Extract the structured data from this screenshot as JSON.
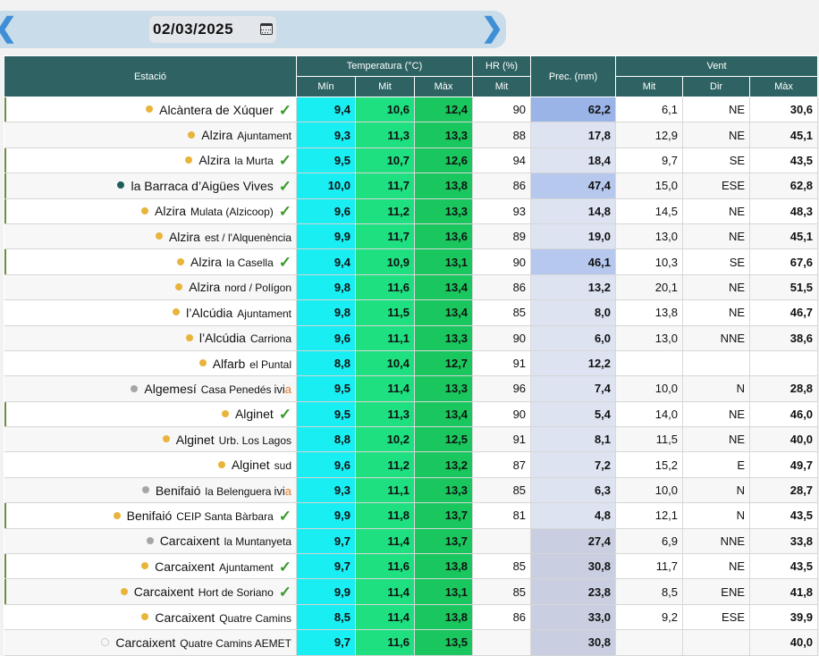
{
  "date_nav": {
    "prev_label": "<",
    "next_label": ">",
    "date": "02/03/2025",
    "calendar_icon": "calendar-icon"
  },
  "headers": {
    "estacio": "Estació",
    "temperatura": "Temperatura (°C)",
    "hr": "HR (%)",
    "prec": "Prec. (mm)",
    "vent": "Vent",
    "min": "Mín",
    "mit": "Mit",
    "max": "Màx",
    "hr_mit": "Mit",
    "vent_mit": "Mit",
    "vent_dir": "Dir",
    "vent_max": "Màx"
  },
  "colors": {
    "header_bg": "#2f6363",
    "temp_min_bg": "#19eef2",
    "temp_mit_bg": "#1ee081",
    "temp_max_bg": "#19c75e",
    "dot_yellow": "#e8b43a",
    "dot_gray": "#a6a6a6",
    "dot_teal": "#1e5e5a",
    "check_green": "#3b9a2c",
    "ivia_orange": "#e07a2b",
    "prec_strong": "#9ab4e8",
    "prec_medium": "#b6c8ee",
    "prec_light": "#dde3f1",
    "prec_gray": "#c9cfe0"
  },
  "rows": [
    {
      "name": "Alcàntera de Xúquer",
      "sub": "",
      "ivia": false,
      "check": true,
      "dot": "yellow",
      "ok": true,
      "min": "9,4",
      "mit": "10,6",
      "max": "12,4",
      "hr": "90",
      "prec": "62,2",
      "prec_level": "strong",
      "wmit": "6,1",
      "wdir": "NE",
      "wmax": "30,6"
    },
    {
      "name": "Alzira",
      "sub": "Ajuntament",
      "ivia": false,
      "check": false,
      "dot": "yellow",
      "ok": false,
      "min": "9,3",
      "mit": "11,3",
      "max": "13,3",
      "hr": "88",
      "prec": "17,8",
      "prec_level": "light",
      "wmit": "12,9",
      "wdir": "NE",
      "wmax": "45,1"
    },
    {
      "name": "Alzira",
      "sub": "la Murta",
      "ivia": false,
      "check": true,
      "dot": "yellow",
      "ok": true,
      "min": "9,5",
      "mit": "10,7",
      "max": "12,6",
      "hr": "94",
      "prec": "18,4",
      "prec_level": "light",
      "wmit": "9,7",
      "wdir": "SE",
      "wmax": "43,5"
    },
    {
      "name": "la Barraca d’Aigües Vives",
      "sub": "",
      "ivia": false,
      "check": true,
      "dot": "teal",
      "ok": true,
      "min": "10,0",
      "mit": "11,7",
      "max": "13,8",
      "hr": "86",
      "prec": "47,4",
      "prec_level": "medium",
      "wmit": "15,0",
      "wdir": "ESE",
      "wmax": "62,8"
    },
    {
      "name": "Alzira",
      "sub": "Mulata (Alzicoop)",
      "ivia": false,
      "check": true,
      "dot": "yellow",
      "ok": true,
      "min": "9,6",
      "mit": "11,2",
      "max": "13,3",
      "hr": "93",
      "prec": "14,8",
      "prec_level": "light",
      "wmit": "14,5",
      "wdir": "NE",
      "wmax": "48,3"
    },
    {
      "name": "Alzira",
      "sub": "est / l'Alquenència",
      "ivia": false,
      "check": false,
      "dot": "yellow",
      "ok": false,
      "min": "9,9",
      "mit": "11,7",
      "max": "13,6",
      "hr": "89",
      "prec": "19,0",
      "prec_level": "light",
      "wmit": "13,0",
      "wdir": "NE",
      "wmax": "45,1"
    },
    {
      "name": "Alzira",
      "sub": "la Casella",
      "ivia": false,
      "check": true,
      "dot": "yellow",
      "ok": true,
      "min": "9,4",
      "mit": "10,9",
      "max": "13,1",
      "hr": "90",
      "prec": "46,1",
      "prec_level": "medium",
      "wmit": "10,3",
      "wdir": "SE",
      "wmax": "67,6"
    },
    {
      "name": "Alzira",
      "sub": "nord / Polígon",
      "ivia": false,
      "check": false,
      "dot": "yellow",
      "ok": false,
      "min": "9,8",
      "mit": "11,6",
      "max": "13,4",
      "hr": "86",
      "prec": "13,2",
      "prec_level": "light",
      "wmit": "20,1",
      "wdir": "NE",
      "wmax": "51,5"
    },
    {
      "name": "l’Alcúdia",
      "sub": "Ajuntament",
      "ivia": false,
      "check": false,
      "dot": "yellow",
      "ok": false,
      "min": "9,8",
      "mit": "11,5",
      "max": "13,4",
      "hr": "85",
      "prec": "8,0",
      "prec_level": "light",
      "wmit": "13,8",
      "wdir": "NE",
      "wmax": "46,7"
    },
    {
      "name": "l’Alcúdia",
      "sub": "Carriona",
      "ivia": false,
      "check": false,
      "dot": "yellow",
      "ok": false,
      "min": "9,6",
      "mit": "11,1",
      "max": "13,3",
      "hr": "90",
      "prec": "6,0",
      "prec_level": "light",
      "wmit": "13,0",
      "wdir": "NNE",
      "wmax": "38,6"
    },
    {
      "name": "Alfarb",
      "sub": "el Puntal",
      "ivia": false,
      "check": false,
      "dot": "yellow",
      "ok": false,
      "min": "8,8",
      "mit": "10,4",
      "max": "12,7",
      "hr": "91",
      "prec": "12,2",
      "prec_level": "light",
      "wmit": "",
      "wdir": "",
      "wmax": ""
    },
    {
      "name": "Algemesí",
      "sub": "Casa Penedés",
      "ivia": true,
      "check": false,
      "dot": "gray",
      "ok": false,
      "min": "9,5",
      "mit": "11,4",
      "max": "13,3",
      "hr": "96",
      "prec": "7,4",
      "prec_level": "light",
      "wmit": "10,0",
      "wdir": "N",
      "wmax": "28,8"
    },
    {
      "name": "Alginet",
      "sub": "",
      "ivia": false,
      "check": true,
      "dot": "yellow",
      "ok": true,
      "min": "9,5",
      "mit": "11,3",
      "max": "13,4",
      "hr": "90",
      "prec": "5,4",
      "prec_level": "light",
      "wmit": "14,0",
      "wdir": "NE",
      "wmax": "46,0"
    },
    {
      "name": "Alginet",
      "sub": "Urb. Los Lagos",
      "ivia": false,
      "check": false,
      "dot": "yellow",
      "ok": false,
      "min": "8,8",
      "mit": "10,2",
      "max": "12,5",
      "hr": "91",
      "prec": "8,1",
      "prec_level": "light",
      "wmit": "11,5",
      "wdir": "NE",
      "wmax": "40,0"
    },
    {
      "name": "Alginet",
      "sub": "sud",
      "ivia": false,
      "check": false,
      "dot": "yellow",
      "ok": false,
      "min": "9,6",
      "mit": "11,2",
      "max": "13,2",
      "hr": "87",
      "prec": "7,2",
      "prec_level": "light",
      "wmit": "15,2",
      "wdir": "E",
      "wmax": "49,7"
    },
    {
      "name": "Benifaió",
      "sub": "la Belenguera",
      "ivia": true,
      "check": false,
      "dot": "gray",
      "ok": false,
      "min": "9,3",
      "mit": "11,1",
      "max": "13,3",
      "hr": "85",
      "prec": "6,3",
      "prec_level": "light",
      "wmit": "10,0",
      "wdir": "N",
      "wmax": "28,7"
    },
    {
      "name": "Benifaió",
      "sub": "CEIP Santa Bàrbara",
      "ivia": false,
      "check": true,
      "dot": "yellow",
      "ok": true,
      "min": "9,9",
      "mit": "11,8",
      "max": "13,7",
      "hr": "81",
      "prec": "4,8",
      "prec_level": "light",
      "wmit": "12,1",
      "wdir": "N",
      "wmax": "43,5"
    },
    {
      "name": "Carcaixent",
      "sub": "la Muntanyeta",
      "ivia": false,
      "check": false,
      "dot": "gray",
      "ok": false,
      "min": "9,7",
      "mit": "11,4",
      "max": "13,7",
      "hr": "",
      "prec": "27,4",
      "prec_level": "gray",
      "wmit": "6,9",
      "wdir": "NNE",
      "wmax": "33,8"
    },
    {
      "name": "Carcaixent",
      "sub": "Ajuntament",
      "ivia": false,
      "check": true,
      "dot": "yellow",
      "ok": true,
      "min": "9,7",
      "mit": "11,6",
      "max": "13,8",
      "hr": "85",
      "prec": "30,8",
      "prec_level": "gray",
      "wmit": "11,7",
      "wdir": "NE",
      "wmax": "43,5"
    },
    {
      "name": "Carcaixent",
      "sub": "Hort de Soriano",
      "ivia": false,
      "check": true,
      "dot": "yellow",
      "ok": true,
      "min": "9,9",
      "mit": "11,4",
      "max": "13,1",
      "hr": "85",
      "prec": "23,8",
      "prec_level": "gray",
      "wmit": "8,5",
      "wdir": "ENE",
      "wmax": "41,8"
    },
    {
      "name": "Carcaixent",
      "sub": "Quatre Camins",
      "ivia": false,
      "check": false,
      "dot": "yellow",
      "ok": false,
      "min": "8,5",
      "mit": "11,4",
      "max": "13,8",
      "hr": "86",
      "prec": "33,0",
      "prec_level": "gray",
      "wmit": "9,2",
      "wdir": "ESE",
      "wmax": "39,9"
    },
    {
      "name": "Carcaixent",
      "sub": "Quatre Camins AEMET",
      "ivia": false,
      "check": false,
      "dot": "hollow",
      "ok": false,
      "min": "9,7",
      "mit": "11,6",
      "max": "13,5",
      "hr": "",
      "prec": "30,8",
      "prec_level": "gray",
      "wmit": "",
      "wdir": "",
      "wmax": "40,0"
    }
  ]
}
